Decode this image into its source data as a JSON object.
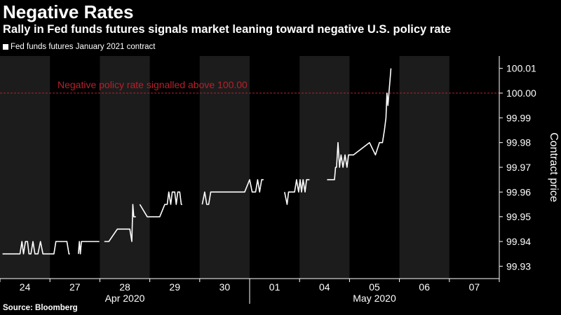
{
  "header": {
    "title": "Negative Rates",
    "subtitle": "Rally in Fed funds futures signals market leaning toward negative U.S. policy rate"
  },
  "legend": {
    "label": "Fed funds futures January 2021 contract"
  },
  "footer": {
    "source": "Source: Bloomberg"
  },
  "colors": {
    "background": "#000000",
    "band": "#1c1c1c",
    "line": "#ffffff",
    "reference": "#b8202a",
    "axis": "#ffffff"
  },
  "chart_data": {
    "type": "line",
    "title": "Negative Rates",
    "subtitle": "Rally in Fed funds futures signals market leaning toward negative U.S. policy rate",
    "ylabel": "Contract price",
    "ylim": [
      99.925,
      100.015
    ],
    "y_ticks": [
      "100.01",
      "100.00",
      "99.99",
      "99.98",
      "99.97",
      "99.96",
      "99.95",
      "99.94",
      "99.93"
    ],
    "x_ticks": [
      "24",
      "27",
      "28",
      "29",
      "30",
      "01",
      "04",
      "05",
      "06",
      "07"
    ],
    "month_labels": [
      {
        "label": "Apr 2020",
        "start_day": 0,
        "end_day": 5
      },
      {
        "label": "May 2020",
        "start_day": 5,
        "end_day": 10
      }
    ],
    "reference_line": {
      "value": 100.0,
      "label": "Negative policy rate signalled above 100.00"
    },
    "series": [
      {
        "name": "Fed funds futures January 2021 contract",
        "segments": [
          [
            [
              0.05,
              99.935
            ],
            [
              0.4,
              99.935
            ],
            [
              0.44,
              99.94
            ],
            [
              0.47,
              99.935
            ],
            [
              0.51,
              99.94
            ],
            [
              0.55,
              99.94
            ],
            [
              0.58,
              99.935
            ],
            [
              0.62,
              99.935
            ],
            [
              0.66,
              99.94
            ],
            [
              0.7,
              99.935
            ],
            [
              0.76,
              99.935
            ],
            [
              0.81,
              99.94
            ],
            [
              0.86,
              99.935
            ],
            [
              1.08,
              99.935
            ],
            [
              1.12,
              99.94
            ],
            [
              1.34,
              99.94
            ],
            [
              1.38,
              99.935
            ],
            [
              1.4,
              99.935
            ]
          ],
          [
            [
              1.57,
              99.935
            ],
            [
              1.59,
              99.94
            ],
            [
              1.61,
              99.935
            ],
            [
              1.63,
              99.94
            ],
            [
              1.99,
              99.94
            ]
          ],
          [
            [
              2.09,
              99.94
            ],
            [
              2.18,
              99.94
            ],
            [
              2.35,
              99.945
            ],
            [
              2.6,
              99.945
            ],
            [
              2.64,
              99.94
            ],
            [
              2.66,
              99.955
            ],
            [
              2.68,
              99.95
            ],
            [
              2.72,
              99.95
            ]
          ],
          [
            [
              2.8,
              99.955
            ],
            [
              2.95,
              99.95
            ],
            [
              3.2,
              99.95
            ],
            [
              3.3,
              99.955
            ],
            [
              3.35,
              99.955
            ],
            [
              3.38,
              99.96
            ],
            [
              3.42,
              99.955
            ],
            [
              3.45,
              99.96
            ],
            [
              3.5,
              99.96
            ],
            [
              3.53,
              99.955
            ],
            [
              3.56,
              99.96
            ],
            [
              3.6,
              99.96
            ],
            [
              3.63,
              99.955
            ],
            [
              3.65,
              99.955
            ]
          ],
          [
            [
              4.05,
              99.955
            ],
            [
              4.1,
              99.96
            ],
            [
              4.14,
              99.955
            ],
            [
              4.18,
              99.955
            ],
            [
              4.22,
              99.96
            ],
            [
              4.28,
              99.96
            ],
            [
              4.32,
              99.96
            ],
            [
              4.9,
              99.96
            ],
            [
              5.0,
              99.965
            ],
            [
              5.05,
              99.96
            ],
            [
              5.12,
              99.96
            ],
            [
              5.16,
              99.965
            ],
            [
              5.2,
              99.96
            ],
            [
              5.24,
              99.965
            ],
            [
              5.28,
              99.965
            ]
          ],
          [
            [
              5.7,
              99.96
            ],
            [
              5.75,
              99.955
            ],
            [
              5.78,
              99.96
            ],
            [
              5.9,
              99.96
            ],
            [
              5.94,
              99.965
            ],
            [
              5.98,
              99.96
            ],
            [
              6.01,
              99.965
            ],
            [
              6.04,
              99.96
            ],
            [
              6.07,
              99.965
            ],
            [
              6.11,
              99.96
            ],
            [
              6.14,
              99.965
            ],
            [
              6.2,
              99.965
            ]
          ],
          [
            [
              6.55,
              99.965
            ],
            [
              6.7,
              99.965
            ],
            [
              6.72,
              99.97
            ],
            [
              6.74,
              99.97
            ],
            [
              6.77,
              99.98
            ],
            [
              6.8,
              99.97
            ],
            [
              6.83,
              99.975
            ],
            [
              6.87,
              99.97
            ],
            [
              6.91,
              99.975
            ],
            [
              6.95,
              99.97
            ],
            [
              6.98,
              99.975
            ],
            [
              7.08,
              99.975
            ],
            [
              7.4,
              99.98
            ],
            [
              7.52,
              99.975
            ],
            [
              7.6,
              99.98
            ],
            [
              7.66,
              99.98
            ],
            [
              7.7,
              99.985
            ],
            [
              7.73,
              99.99
            ],
            [
              7.75,
              100.0
            ],
            [
              7.77,
              99.995
            ],
            [
              7.79,
              100.0
            ],
            [
              7.81,
              100.005
            ],
            [
              7.83,
              100.01
            ]
          ]
        ]
      }
    ]
  }
}
